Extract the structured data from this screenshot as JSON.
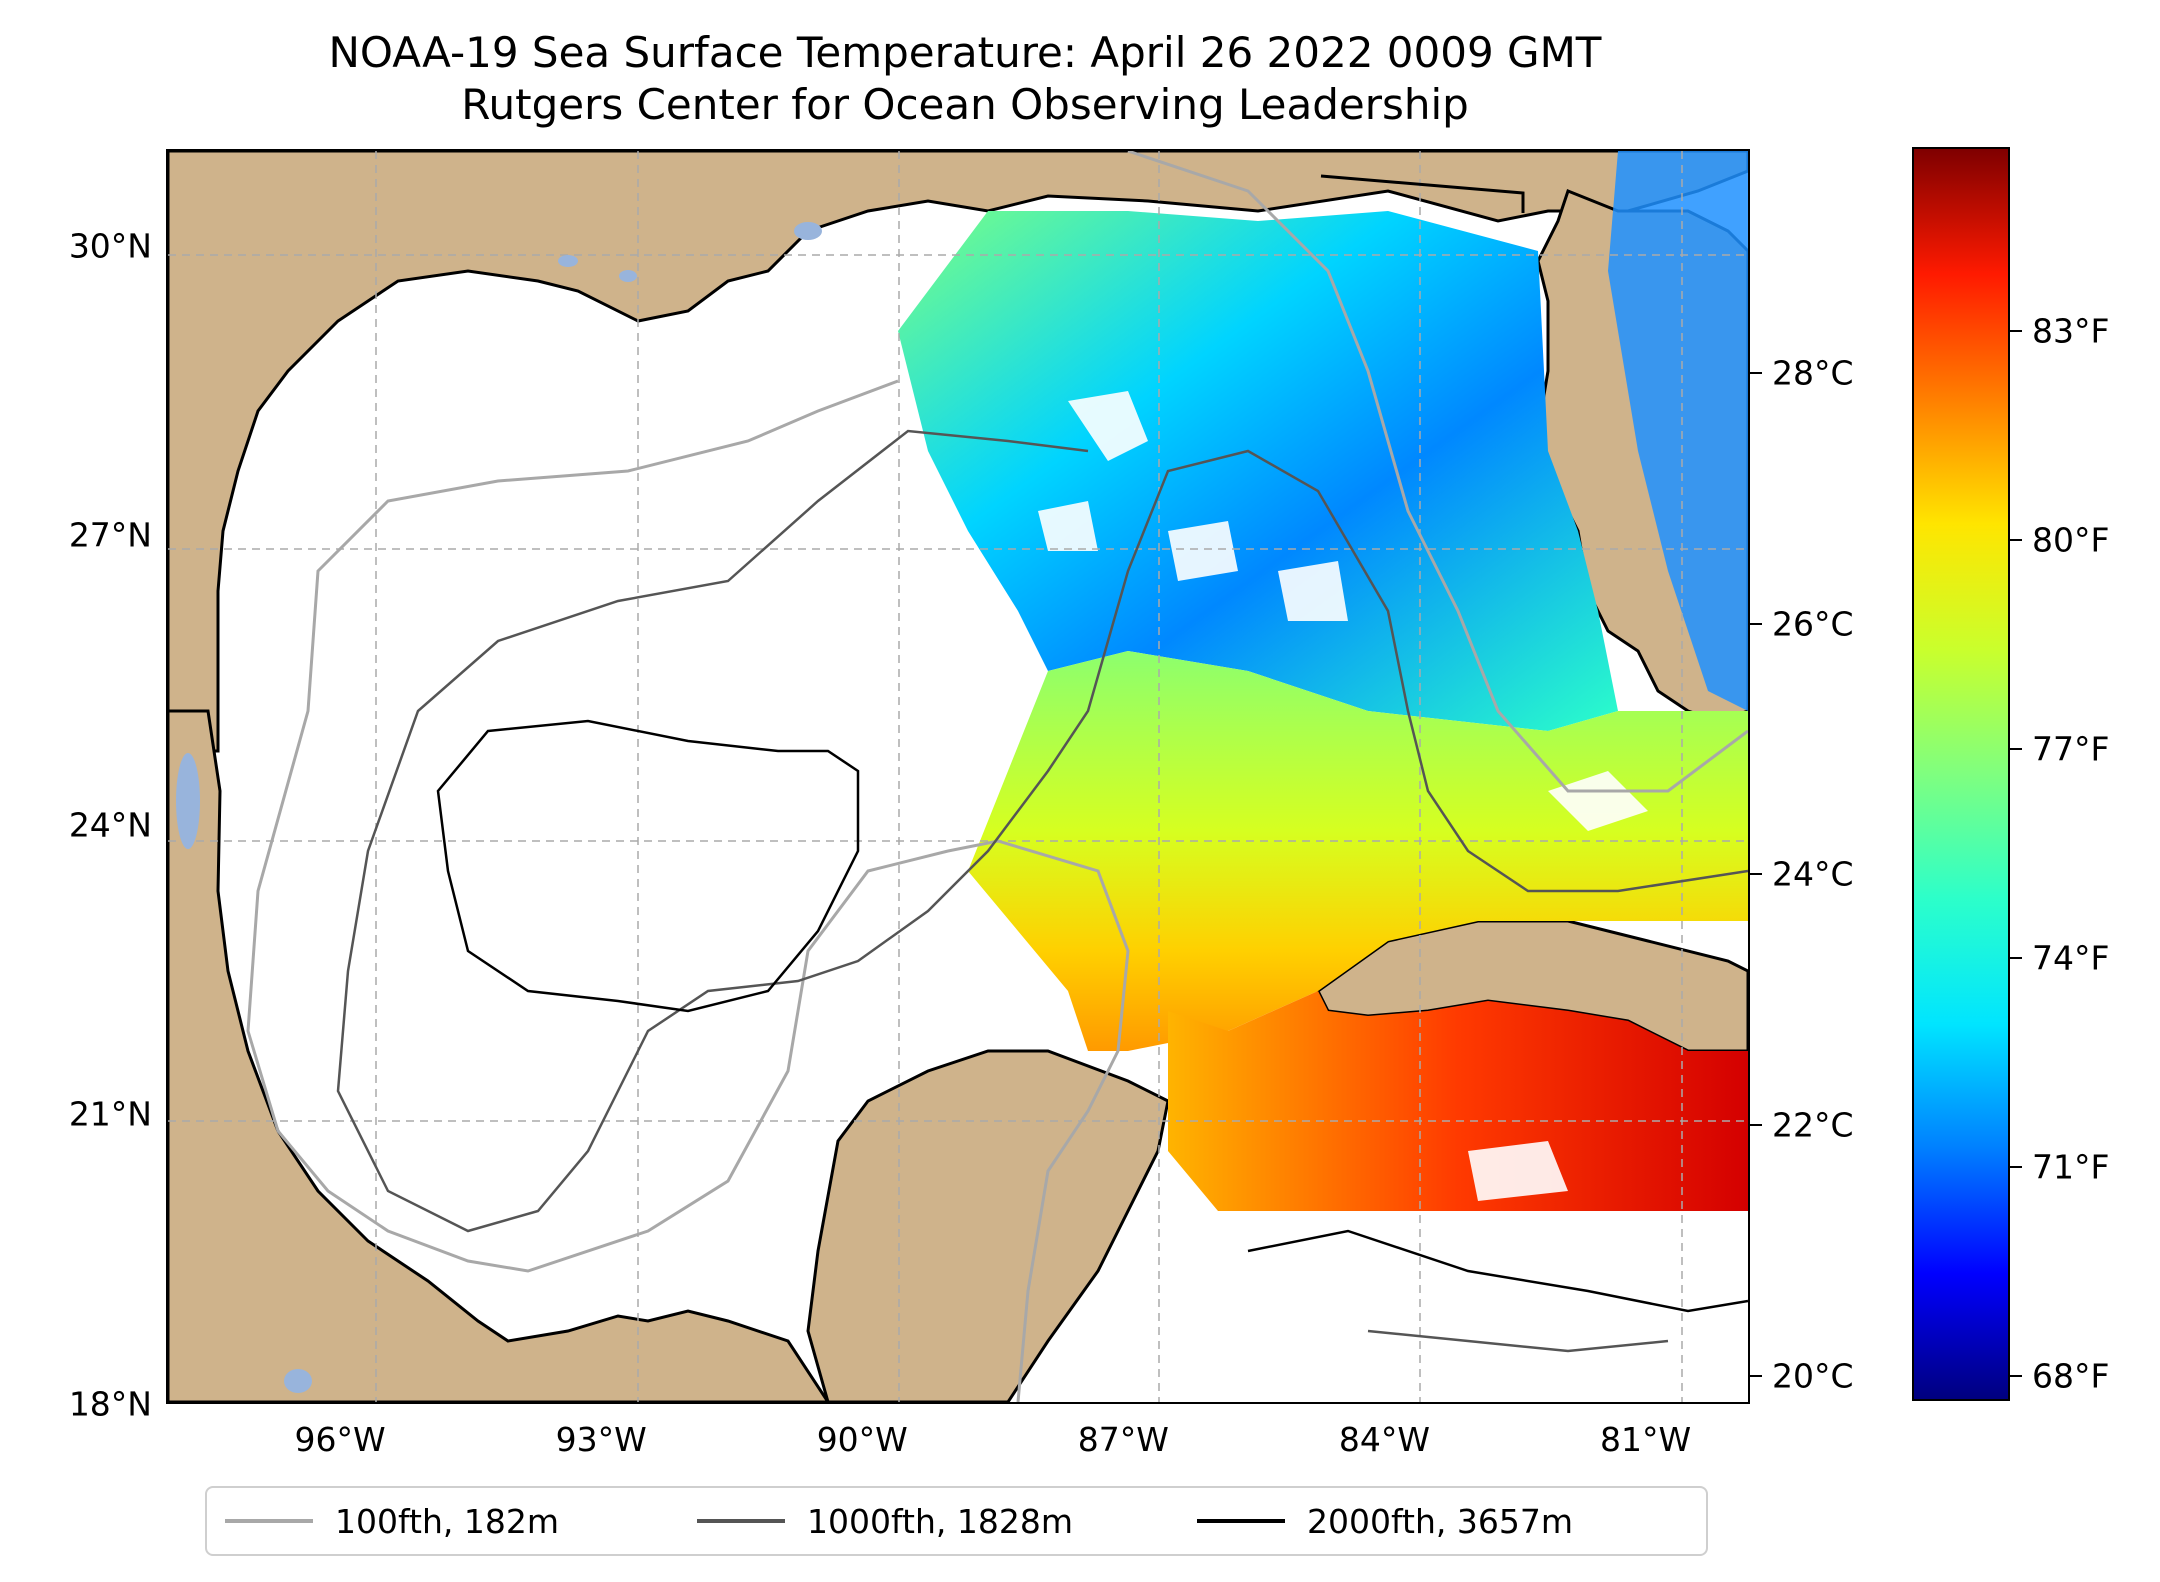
{
  "title": {
    "line1": "NOAA-19 Sea Surface Temperature: April 26 2022 0009 GMT",
    "line2": "Rutgers Center for Ocean Observing Leadership"
  },
  "map": {
    "extent": {
      "lon_min": -98.0,
      "lon_max": -79.8,
      "lat_min": 18.0,
      "lat_max": 31.0
    },
    "latitude_labels": [
      {
        "value": 30,
        "text": "30°N"
      },
      {
        "value": 27,
        "text": "27°N"
      },
      {
        "value": 24,
        "text": "24°N"
      },
      {
        "value": 21,
        "text": "21°N"
      },
      {
        "value": 18,
        "text": "18°N"
      }
    ],
    "longitude_labels": [
      {
        "value": -96,
        "text": "96°W"
      },
      {
        "value": -93,
        "text": "93°W"
      },
      {
        "value": -90,
        "text": "90°W"
      },
      {
        "value": -87,
        "text": "87°W"
      },
      {
        "value": -84,
        "text": "84°W"
      },
      {
        "value": -81,
        "text": "81°W"
      }
    ],
    "gridlines": "dashed",
    "land_color": "#cfb38b",
    "water_color": "#ffffff",
    "inland_water_color": "#98b4dc"
  },
  "legend": {
    "placement": "below map",
    "items": [
      {
        "label": "100fth, 182m",
        "color": "#a8a8a8"
      },
      {
        "label": "1000fth, 1828m",
        "color": "#555555"
      },
      {
        "label": "2000fth, 3657m",
        "color": "#000000"
      }
    ]
  },
  "colorbar": {
    "colormap": "jet",
    "celsius_range": [
      19.8,
      29.8
    ],
    "celsius_ticks": [
      {
        "value": 20,
        "text": "20°C"
      },
      {
        "value": 22,
        "text": "22°C"
      },
      {
        "value": 24,
        "text": "24°C"
      },
      {
        "value": 26,
        "text": "26°C"
      },
      {
        "value": 28,
        "text": "28°C"
      }
    ],
    "fahrenheit_ticks": [
      {
        "value": 68,
        "text": "68°F"
      },
      {
        "value": 71,
        "text": "71°F"
      },
      {
        "value": 74,
        "text": "74°F"
      },
      {
        "value": 77,
        "text": "77°F"
      },
      {
        "value": 80,
        "text": "80°F"
      },
      {
        "value": 83,
        "text": "83°F"
      }
    ],
    "colors": [
      "#00007f",
      "#0000ff",
      "#007fff",
      "#00e5ff",
      "#2cffca",
      "#7fff7f",
      "#caff2c",
      "#ffe500",
      "#ff7f00",
      "#ff1a00",
      "#7f0000"
    ]
  }
}
